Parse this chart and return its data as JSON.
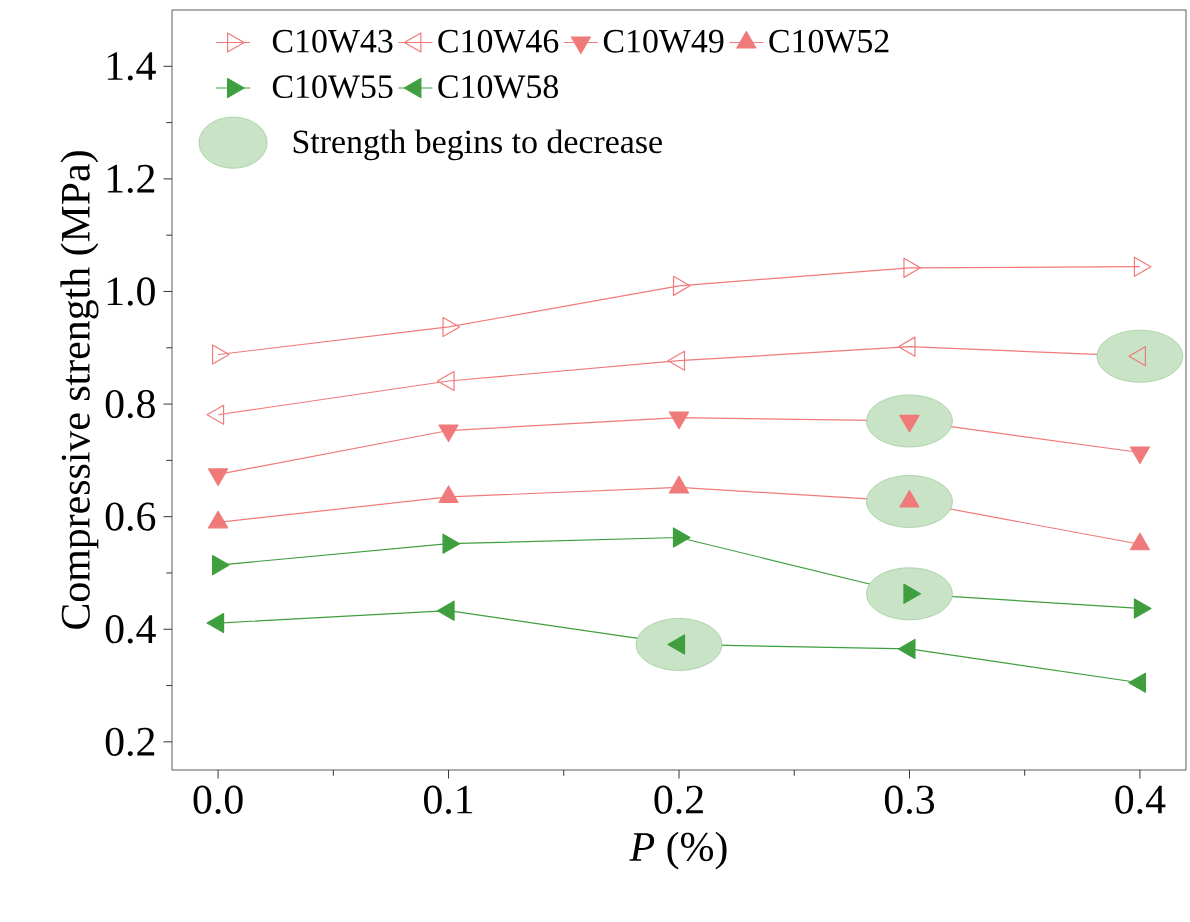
{
  "chart_data": {
    "type": "line",
    "xlabel": "*P* (%)",
    "ylabel": "Compressive strength (MPa)",
    "x": [
      0.0,
      0.1,
      0.2,
      0.3,
      0.4
    ],
    "xlim": [
      -0.02,
      0.42
    ],
    "ylim": [
      0.15,
      1.5
    ],
    "xticks": [
      {
        "value": 0.0,
        "label": "0.0"
      },
      {
        "value": 0.1,
        "label": "0.1"
      },
      {
        "value": 0.2,
        "label": "0.2"
      },
      {
        "value": 0.3,
        "label": "0.3"
      },
      {
        "value": 0.4,
        "label": "0.4"
      }
    ],
    "yticks": [
      {
        "value": 0.2,
        "label": "0.2"
      },
      {
        "value": 0.4,
        "label": "0.4"
      },
      {
        "value": 0.6,
        "label": "0.6"
      },
      {
        "value": 0.8,
        "label": "0.8"
      },
      {
        "value": 1.0,
        "label": "1.0"
      },
      {
        "value": 1.2,
        "label": "1.2"
      },
      {
        "value": 1.4,
        "label": "1.4"
      }
    ],
    "grid": false,
    "legend": "top left",
    "marker": "triangle",
    "line_style": "solid",
    "series": [
      {
        "name": "C10W43",
        "color": "#f07a7a",
        "values": [
          0.888,
          0.937,
          1.01,
          1.042,
          1.044
        ]
      },
      {
        "name": "C10W46",
        "color": "#f07a7a",
        "values": [
          0.781,
          0.841,
          0.877,
          0.902,
          0.885
        ]
      },
      {
        "name": "C10W49",
        "color": "#f07a7a",
        "values": [
          0.675,
          0.753,
          0.776,
          0.77,
          0.714
        ]
      },
      {
        "name": "C10W52",
        "color": "#f07a7a",
        "values": [
          0.59,
          0.635,
          0.652,
          0.627,
          0.551
        ]
      },
      {
        "name": "C10W55",
        "color": "#3f9f3f",
        "values": [
          0.514,
          0.552,
          0.563,
          0.463,
          0.437
        ]
      },
      {
        "name": "C10W58",
        "color": "#3f9f3f",
        "values": [
          0.411,
          0.433,
          0.373,
          0.365,
          0.305
        ]
      },
      {
        "name": "Strength begins to decrease",
        "type": "scatter",
        "marker": "circle",
        "color": "#c9e3c6",
        "x": [
          0.4,
          0.3,
          0.3,
          0.3,
          0.2
        ],
        "values": [
          0.885,
          0.77,
          0.627,
          0.463,
          0.373
        ]
      }
    ]
  }
}
